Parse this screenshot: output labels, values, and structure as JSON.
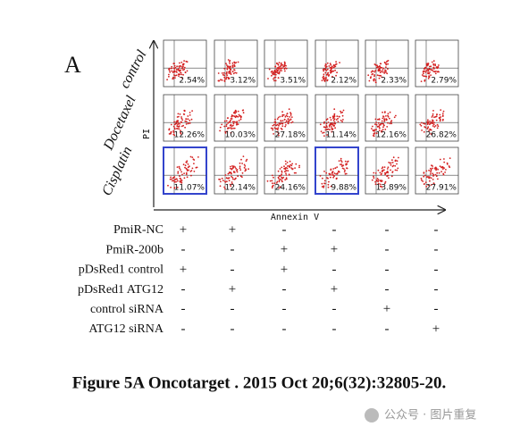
{
  "panel_label": "A",
  "row_labels": [
    "control",
    "Docetaxel",
    "Cisplatin"
  ],
  "y_axis_label": "PI",
  "x_axis_label": "Annexin V",
  "cells": [
    [
      "2.54%",
      "3.12%",
      "3.51%",
      "2.12%",
      "2.33%",
      "2.79%"
    ],
    [
      "12.26%",
      "10.03%",
      "27.18%",
      "11.14%",
      "12.16%",
      "26.82%"
    ],
    [
      "11.07%",
      "12.14%",
      "24.16%",
      "9.88%",
      "13.89%",
      "27.91%"
    ]
  ],
  "conditions": [
    {
      "label": "PmiR-NC",
      "signs": [
        "+",
        "+",
        "-",
        "-",
        "-",
        "-"
      ]
    },
    {
      "label": "PmiR-200b",
      "signs": [
        "-",
        "-",
        "+",
        "+",
        "-",
        "-"
      ]
    },
    {
      "label": "pDsRed1 control",
      "signs": [
        "+",
        "-",
        "+",
        "-",
        "-",
        "-"
      ]
    },
    {
      "label": "pDsRed1 ATG12",
      "signs": [
        "-",
        "+",
        "-",
        "+",
        "-",
        "-"
      ]
    },
    {
      "label": "control siRNA",
      "signs": [
        "-",
        "-",
        "-",
        "-",
        "+",
        "-"
      ]
    },
    {
      "label": "ATG12 siRNA",
      "signs": [
        "-",
        "-",
        "-",
        "-",
        "-",
        "+"
      ]
    }
  ],
  "caption": "Figure 5A Oncotarget . 2015 Oct 20;6(32):32805-20.",
  "watermark": "公众号 · 图片重复"
}
